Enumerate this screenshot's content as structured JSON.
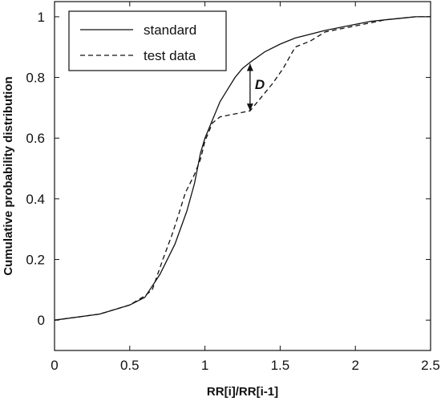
{
  "chart_data": {
    "type": "line",
    "xlabel": "RR[i]/RR[i-1]",
    "ylabel": "Cumulative probability distribution",
    "xlim": [
      0,
      2.5
    ],
    "ylim": [
      -0.1,
      1.05
    ],
    "x_ticks": [
      "0",
      "0.5",
      "1",
      "1.5",
      "2",
      "2.5"
    ],
    "y_ticks": [
      "0",
      "0.2",
      "0.4",
      "0.6",
      "0.8",
      "1"
    ],
    "x_tick_values": [
      0,
      0.5,
      1,
      1.5,
      2,
      2.5
    ],
    "y_tick_values": [
      0,
      0.2,
      0.4,
      0.6,
      0.8,
      1
    ],
    "grid": false,
    "legend_position": "top-left",
    "series": [
      {
        "name": "standard",
        "line_style": "solid",
        "color": "#111111",
        "points": [
          [
            0,
            0
          ],
          [
            0.3,
            0.02
          ],
          [
            0.5,
            0.05
          ],
          [
            0.6,
            0.075
          ],
          [
            0.7,
            0.15
          ],
          [
            0.8,
            0.25
          ],
          [
            0.88,
            0.36
          ],
          [
            0.93,
            0.45
          ],
          [
            0.97,
            0.55
          ],
          [
            1.0,
            0.6
          ],
          [
            1.05,
            0.66
          ],
          [
            1.1,
            0.72
          ],
          [
            1.15,
            0.76
          ],
          [
            1.2,
            0.8
          ],
          [
            1.25,
            0.83
          ],
          [
            1.3,
            0.85
          ],
          [
            1.4,
            0.885
          ],
          [
            1.5,
            0.91
          ],
          [
            1.6,
            0.93
          ],
          [
            1.8,
            0.955
          ],
          [
            2.0,
            0.975
          ],
          [
            2.1,
            0.985
          ],
          [
            2.2,
            0.99
          ],
          [
            2.3,
            0.995
          ],
          [
            2.4,
            1.0
          ],
          [
            2.5,
            1.0
          ]
        ]
      },
      {
        "name": "test data",
        "line_style": "dashed",
        "color": "#111111",
        "points": [
          [
            0,
            0
          ],
          [
            0.3,
            0.02
          ],
          [
            0.5,
            0.05
          ],
          [
            0.6,
            0.08
          ],
          [
            0.65,
            0.1
          ],
          [
            0.72,
            0.2
          ],
          [
            0.78,
            0.28
          ],
          [
            0.82,
            0.34
          ],
          [
            0.87,
            0.42
          ],
          [
            0.93,
            0.48
          ],
          [
            0.97,
            0.53
          ],
          [
            1.0,
            0.59
          ],
          [
            1.05,
            0.65
          ],
          [
            1.1,
            0.67
          ],
          [
            1.2,
            0.68
          ],
          [
            1.3,
            0.69
          ],
          [
            1.35,
            0.72
          ],
          [
            1.45,
            0.78
          ],
          [
            1.52,
            0.83
          ],
          [
            1.6,
            0.9
          ],
          [
            1.7,
            0.92
          ],
          [
            1.8,
            0.95
          ],
          [
            1.9,
            0.96
          ],
          [
            2.0,
            0.97
          ],
          [
            2.2,
            0.99
          ],
          [
            2.4,
            1.0
          ],
          [
            2.5,
            1.0
          ]
        ]
      }
    ],
    "annotations": [
      {
        "text": "D",
        "x_at": 1.3,
        "y_from": 0.69,
        "y_to": 0.845,
        "style": "double-arrow"
      }
    ]
  }
}
